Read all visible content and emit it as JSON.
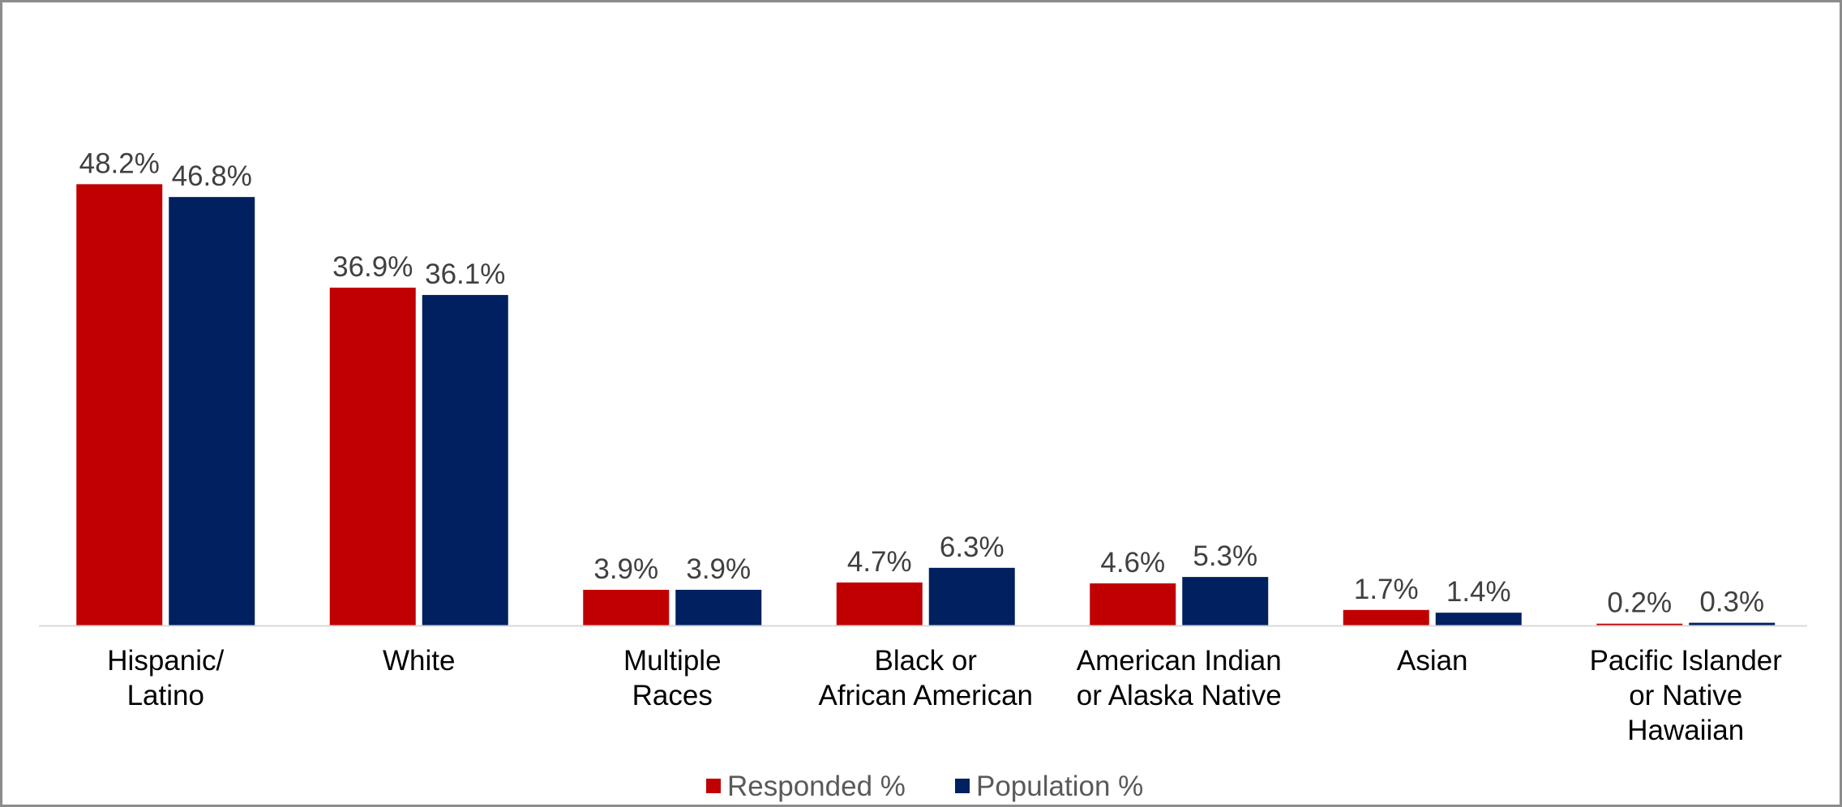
{
  "chart_data": {
    "type": "bar",
    "title": "",
    "xlabel": "",
    "ylabel": "",
    "ylim": [
      0,
      50
    ],
    "grid": false,
    "legend_position": "bottom",
    "categories": [
      [
        "Hispanic/",
        "Latino"
      ],
      [
        "White"
      ],
      [
        "Multiple",
        "Races"
      ],
      [
        "Black or",
        "African American"
      ],
      [
        "American Indian",
        "or Alaska Native"
      ],
      [
        "Asian"
      ],
      [
        "Pacific Islander",
        "or Native",
        "Hawaiian"
      ]
    ],
    "series": [
      {
        "name": "Responded %",
        "color": "#c00000",
        "values": [
          48.2,
          36.9,
          3.9,
          4.7,
          4.6,
          1.7,
          0.2
        ],
        "labels": [
          "48.2%",
          "36.9%",
          "3.9%",
          "4.7%",
          "4.6%",
          "1.7%",
          "0.2%"
        ]
      },
      {
        "name": "Population %",
        "color": "#002060",
        "values": [
          46.8,
          36.1,
          3.9,
          6.3,
          5.3,
          1.4,
          0.3
        ],
        "labels": [
          "46.8%",
          "36.1%",
          "3.9%",
          "6.3%",
          "5.3%",
          "1.4%",
          "0.3%"
        ]
      }
    ],
    "axis_color": "#d9d9d9"
  }
}
